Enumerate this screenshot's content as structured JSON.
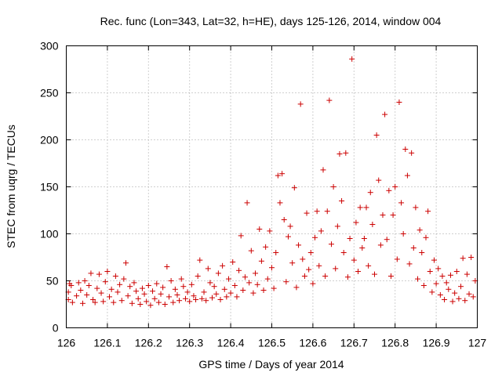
{
  "chart_data": {
    "type": "scatter",
    "title": "Rec. func (Lon=343, Lat=32, h=HE), days 125-126, 2014, window 004",
    "xlabel": "GPS time / Days of year 2014",
    "ylabel": "STEC from uqrg / TECUs",
    "xlim": [
      126,
      127
    ],
    "ylim": [
      0,
      300
    ],
    "xticks": [
      126,
      126.1,
      126.2,
      126.3,
      126.4,
      126.5,
      126.6,
      126.7,
      126.8,
      126.9,
      127
    ],
    "xtick_labels": [
      "126",
      "126.1",
      "126.2",
      "126.3",
      "126.4",
      "126.5",
      "126.6",
      "126.7",
      "126.8",
      "126.9",
      "127"
    ],
    "yticks": [
      0,
      50,
      100,
      150,
      200,
      250,
      300
    ],
    "ytick_labels": [
      "0",
      "50",
      "100",
      "150",
      "200",
      "250",
      "300"
    ],
    "grid": true,
    "marker": "plus",
    "color": "#cc0000",
    "series": [
      {
        "name": "STEC",
        "points": [
          [
            126.005,
            30
          ],
          [
            126.005,
            38
          ],
          [
            126.008,
            47
          ],
          [
            126.012,
            45
          ],
          [
            126.015,
            27
          ],
          [
            126.025,
            34
          ],
          [
            126.03,
            48
          ],
          [
            126.035,
            40
          ],
          [
            126.04,
            26
          ],
          [
            126.045,
            50
          ],
          [
            126.05,
            35
          ],
          [
            126.055,
            45
          ],
          [
            126.06,
            58
          ],
          [
            126.065,
            30
          ],
          [
            126.07,
            27
          ],
          [
            126.075,
            42
          ],
          [
            126.08,
            57
          ],
          [
            126.085,
            37
          ],
          [
            126.09,
            28
          ],
          [
            126.095,
            49
          ],
          [
            126.1,
            60
          ],
          [
            126.105,
            33
          ],
          [
            126.11,
            41
          ],
          [
            126.115,
            27
          ],
          [
            126.12,
            55
          ],
          [
            126.125,
            38
          ],
          [
            126.13,
            46
          ],
          [
            126.135,
            29
          ],
          [
            126.14,
            52
          ],
          [
            126.145,
            69
          ],
          [
            126.15,
            34
          ],
          [
            126.155,
            44
          ],
          [
            126.16,
            26
          ],
          [
            126.165,
            48
          ],
          [
            126.17,
            39
          ],
          [
            126.175,
            31
          ],
          [
            126.18,
            25
          ],
          [
            126.185,
            42
          ],
          [
            126.19,
            36
          ],
          [
            126.195,
            28
          ],
          [
            126.2,
            45
          ],
          [
            126.205,
            24
          ],
          [
            126.21,
            39
          ],
          [
            126.215,
            31
          ],
          [
            126.22,
            47
          ],
          [
            126.225,
            27
          ],
          [
            126.23,
            36
          ],
          [
            126.235,
            43
          ],
          [
            126.24,
            25
          ],
          [
            126.245,
            65
          ],
          [
            126.25,
            33
          ],
          [
            126.255,
            50
          ],
          [
            126.26,
            27
          ],
          [
            126.265,
            41
          ],
          [
            126.27,
            35
          ],
          [
            126.275,
            29
          ],
          [
            126.28,
            52
          ],
          [
            126.285,
            44
          ],
          [
            126.29,
            31
          ],
          [
            126.295,
            38
          ],
          [
            126.3,
            28
          ],
          [
            126.305,
            46
          ],
          [
            126.31,
            34
          ],
          [
            126.315,
            30
          ],
          [
            126.32,
            55
          ],
          [
            126.325,
            72
          ],
          [
            126.33,
            31
          ],
          [
            126.335,
            38
          ],
          [
            126.34,
            29
          ],
          [
            126.345,
            63
          ],
          [
            126.35,
            48
          ],
          [
            126.355,
            32
          ],
          [
            126.36,
            44
          ],
          [
            126.365,
            36
          ],
          [
            126.37,
            58
          ],
          [
            126.375,
            30
          ],
          [
            126.38,
            66
          ],
          [
            126.385,
            41
          ],
          [
            126.39,
            33
          ],
          [
            126.395,
            52
          ],
          [
            126.4,
            37
          ],
          [
            126.405,
            70
          ],
          [
            126.41,
            45
          ],
          [
            126.415,
            33
          ],
          [
            126.42,
            61
          ],
          [
            126.425,
            98
          ],
          [
            126.43,
            40
          ],
          [
            126.435,
            54
          ],
          [
            126.44,
            133
          ],
          [
            126.445,
            48
          ],
          [
            126.45,
            82
          ],
          [
            126.455,
            37
          ],
          [
            126.46,
            58
          ],
          [
            126.465,
            46
          ],
          [
            126.47,
            105
          ],
          [
            126.475,
            71
          ],
          [
            126.48,
            40
          ],
          [
            126.485,
            86
          ],
          [
            126.49,
            52
          ],
          [
            126.495,
            103
          ],
          [
            126.5,
            64
          ],
          [
            126.505,
            42
          ],
          [
            126.51,
            80
          ],
          [
            126.515,
            162
          ],
          [
            126.52,
            133
          ],
          [
            126.525,
            164
          ],
          [
            126.53,
            115
          ],
          [
            126.535,
            49
          ],
          [
            126.54,
            97
          ],
          [
            126.545,
            108
          ],
          [
            126.55,
            69
          ],
          [
            126.555,
            149
          ],
          [
            126.56,
            43
          ],
          [
            126.565,
            88
          ],
          [
            126.57,
            238
          ],
          [
            126.575,
            73
          ],
          [
            126.58,
            55
          ],
          [
            126.585,
            122
          ],
          [
            126.59,
            62
          ],
          [
            126.595,
            80
          ],
          [
            126.6,
            47
          ],
          [
            126.605,
            96
          ],
          [
            126.61,
            124
          ],
          [
            126.615,
            66
          ],
          [
            126.62,
            103
          ],
          [
            126.625,
            168
          ],
          [
            126.63,
            55
          ],
          [
            126.635,
            124
          ],
          [
            126.64,
            242
          ],
          [
            126.645,
            89
          ],
          [
            126.65,
            150
          ],
          [
            126.655,
            63
          ],
          [
            126.66,
            108
          ],
          [
            126.665,
            185
          ],
          [
            126.67,
            135
          ],
          [
            126.675,
            80
          ],
          [
            126.68,
            186
          ],
          [
            126.685,
            54
          ],
          [
            126.69,
            95
          ],
          [
            126.695,
            286
          ],
          [
            126.7,
            72
          ],
          [
            126.705,
            112
          ],
          [
            126.71,
            60
          ],
          [
            126.715,
            128
          ],
          [
            126.72,
            85
          ],
          [
            126.725,
            95
          ],
          [
            126.73,
            128
          ],
          [
            126.735,
            66
          ],
          [
            126.74,
            144
          ],
          [
            126.745,
            110
          ],
          [
            126.75,
            57
          ],
          [
            126.755,
            205
          ],
          [
            126.76,
            157
          ],
          [
            126.765,
            88
          ],
          [
            126.77,
            120
          ],
          [
            126.775,
            227
          ],
          [
            126.78,
            94
          ],
          [
            126.785,
            146
          ],
          [
            126.79,
            55
          ],
          [
            126.795,
            120
          ],
          [
            126.8,
            150
          ],
          [
            126.805,
            73
          ],
          [
            126.81,
            240
          ],
          [
            126.815,
            133
          ],
          [
            126.82,
            100
          ],
          [
            126.825,
            190
          ],
          [
            126.83,
            162
          ],
          [
            126.835,
            68
          ],
          [
            126.84,
            186
          ],
          [
            126.845,
            85
          ],
          [
            126.85,
            128
          ],
          [
            126.855,
            52
          ],
          [
            126.86,
            104
          ],
          [
            126.865,
            80
          ],
          [
            126.87,
            45
          ],
          [
            126.875,
            96
          ],
          [
            126.88,
            124
          ],
          [
            126.885,
            60
          ],
          [
            126.89,
            38
          ],
          [
            126.895,
            72
          ],
          [
            126.9,
            47
          ],
          [
            126.905,
            63
          ],
          [
            126.91,
            35
          ],
          [
            126.915,
            55
          ],
          [
            126.92,
            30
          ],
          [
            126.925,
            48
          ],
          [
            126.93,
            41
          ],
          [
            126.935,
            56
          ],
          [
            126.94,
            28
          ],
          [
            126.945,
            37
          ],
          [
            126.95,
            60
          ],
          [
            126.955,
            31
          ],
          [
            126.96,
            44
          ],
          [
            126.965,
            74
          ],
          [
            126.97,
            29
          ],
          [
            126.975,
            57
          ],
          [
            126.98,
            36
          ],
          [
            126.985,
            75
          ],
          [
            126.99,
            33
          ],
          [
            126.995,
            50
          ]
        ]
      }
    ]
  }
}
